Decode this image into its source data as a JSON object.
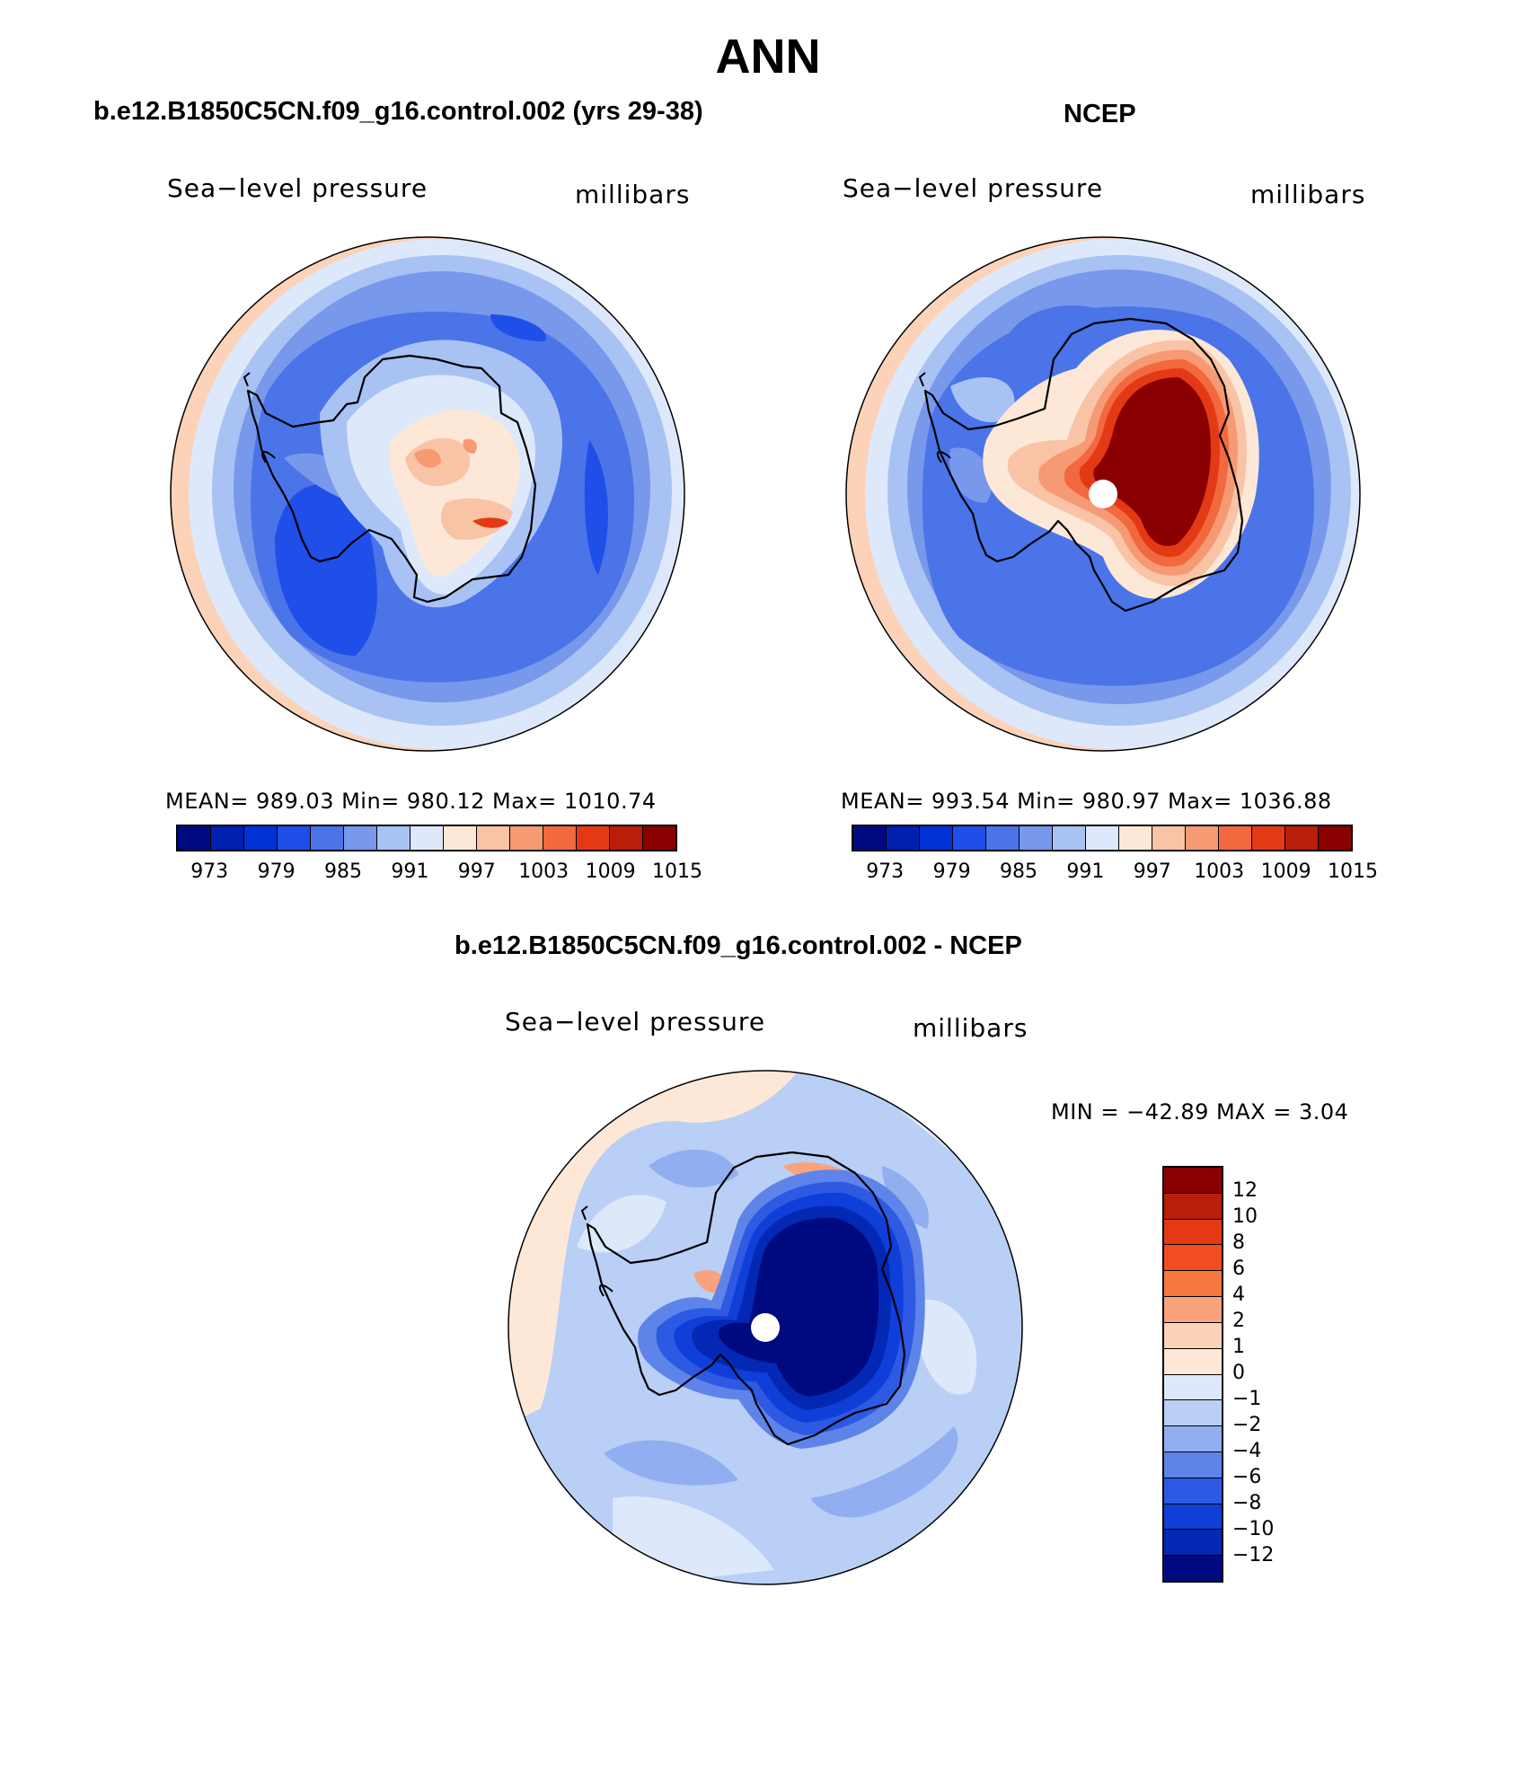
{
  "title": "ANN",
  "panels": {
    "model": {
      "title": "b.e12.B1850C5CN.f09_g16.control.002 (yrs 29-38)",
      "left_label": "Sea−level pressure",
      "right_label": "millibars",
      "stats": "MEAN=  989.03    Min=  980.12    Max=  1010.74"
    },
    "obs": {
      "title": "NCEP",
      "left_label": "Sea−level pressure",
      "right_label": "millibars",
      "stats": "MEAN=  993.54    Min=  980.97    Max=  1036.88"
    },
    "diff": {
      "title": "b.e12.B1850C5CN.f09_g16.control.002 - NCEP",
      "left_label": "Sea−level pressure",
      "right_label": "millibars",
      "stats": "MIN  =  −42.89  MAX  =     3.04"
    }
  },
  "colorbars": {
    "abs_colors": [
      "#000a80",
      "#0020b0",
      "#0032d6",
      "#1f4ee8",
      "#4a74e8",
      "#7898ec",
      "#a9c2f4",
      "#dde9fb",
      "#fde8d8",
      "#f9c3a6",
      "#f69a74",
      "#f2683f",
      "#e33a15",
      "#b81e0a",
      "#8a0000"
    ],
    "abs_ticks": [
      "973",
      "979",
      "985",
      "991",
      "997",
      "1003",
      "1009",
      "1015"
    ],
    "diff_colors": [
      "#8a0000",
      "#b81e0a",
      "#e33a15",
      "#f24d22",
      "#f6783e",
      "#f9a37c",
      "#fcd2b8",
      "#fde8d8",
      "#dde9fb",
      "#b9cff6",
      "#90aef0",
      "#5f84e9",
      "#2d59e3",
      "#0f3fd8",
      "#0328b4",
      "#000a80"
    ],
    "diff_ticks": [
      "12",
      "10",
      "8",
      "6",
      "4",
      "2",
      "1",
      "0",
      "−1",
      "−2",
      "−4",
      "−6",
      "−8",
      "−10",
      "−12"
    ]
  }
}
